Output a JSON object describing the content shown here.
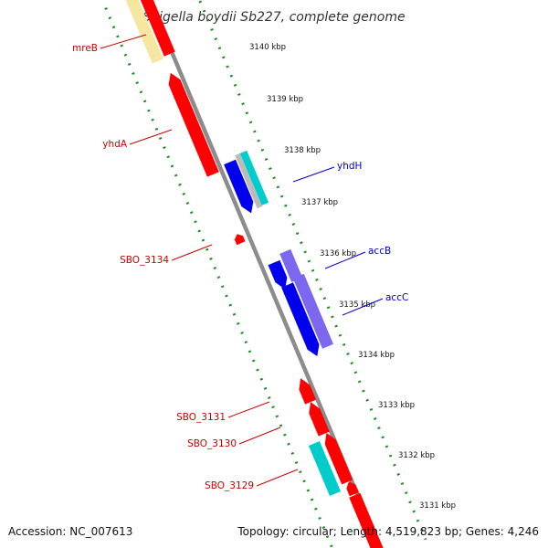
{
  "title": "Shigella boydii Sb227, complete genome",
  "footer": {
    "accession": "Accession: NC_007613",
    "summary": "Topology: circular; Length: 4,519,823 bp; Genes: 4,246"
  },
  "colors": {
    "backbone": "#8c8c8c",
    "dotted_track": "#1f8c1f",
    "forward_label": "#0000cc",
    "reverse_label": "#cc0000",
    "red_gene": "#ff0000",
    "blue_gene": "#0000ee",
    "cyan_gene": "#00cccc",
    "purple_gene": "#7b68ee",
    "grey_gene": "#bbbbbb",
    "yellow_gene": "#f5e6a0"
  },
  "ticks": [
    "3140 kbp",
    "3139 kbp",
    "3138 kbp",
    "3137 kbp",
    "3136 kbp",
    "3135 kbp",
    "3134 kbp",
    "3133 kbp",
    "3132 kbp",
    "3131 kbp"
  ],
  "gene_labels": [
    {
      "text": "mreB",
      "strand": "reverse"
    },
    {
      "text": "yhdA",
      "strand": "reverse"
    },
    {
      "text": "yhdH",
      "strand": "forward"
    },
    {
      "text": "SBO_3134",
      "strand": "reverse"
    },
    {
      "text": "accB",
      "strand": "forward"
    },
    {
      "text": "accC",
      "strand": "forward"
    },
    {
      "text": "SBO_3131",
      "strand": "reverse"
    },
    {
      "text": "SBO_3130",
      "strand": "reverse"
    },
    {
      "text": "SBO_3129",
      "strand": "reverse"
    }
  ]
}
